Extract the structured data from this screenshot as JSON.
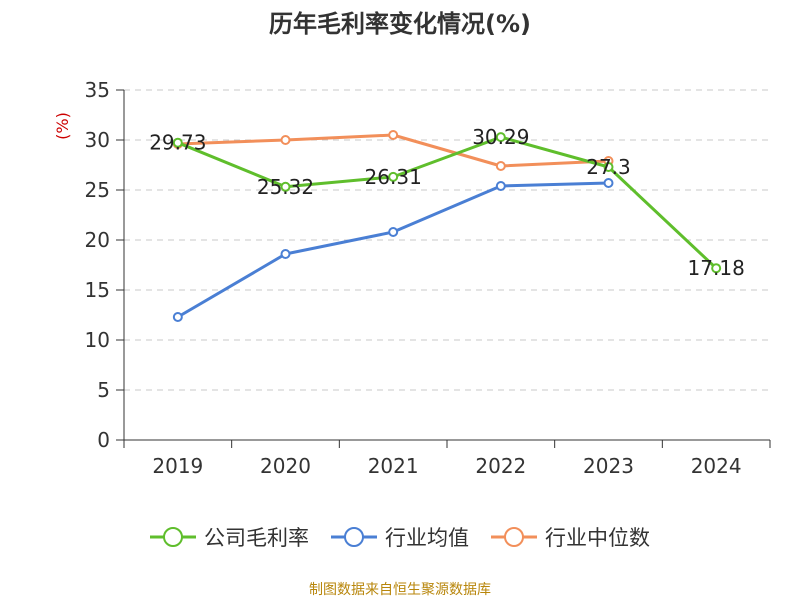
{
  "chart_data": {
    "type": "line",
    "title": "历年毛利率变化情况(%)",
    "ylabel": "(%)",
    "xlabel": "",
    "categories": [
      "2019",
      "2020",
      "2021",
      "2022",
      "2023",
      "2024"
    ],
    "ylim": [
      0,
      35
    ],
    "yticks": [
      "0",
      "5",
      "10",
      "15",
      "20",
      "25",
      "30",
      "35"
    ],
    "grid": true,
    "legend_position": "bottom",
    "series": [
      {
        "name": "公司毛利率",
        "color": "#5fbe2c",
        "values": [
          29.73,
          25.32,
          26.31,
          30.29,
          27.3,
          17.18
        ],
        "labels": [
          "29.73",
          "25.32",
          "26.31",
          "30.29",
          "27.3",
          "17.18"
        ]
      },
      {
        "name": "行业均值",
        "color": "#4a7fd4",
        "values": [
          12.3,
          18.6,
          20.8,
          25.4,
          25.7,
          null
        ],
        "labels": []
      },
      {
        "name": "行业中位数",
        "color": "#f28f5a",
        "values": [
          29.6,
          30.0,
          30.5,
          27.4,
          27.9,
          null
        ],
        "labels": []
      }
    ]
  },
  "source": "制图数据来自恒生聚源数据库"
}
